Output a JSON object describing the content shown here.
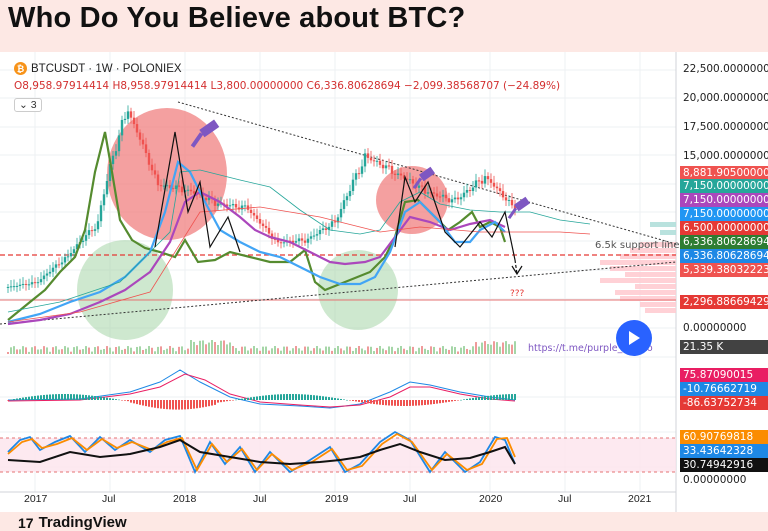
{
  "headline": "Who Do You Believe about BTC?",
  "symbol": {
    "icon": "bitcoin-icon",
    "text": "BTCUSDT · 1W · POLONIEX",
    "ohlc": "O8,958.97914414 H8,958.97914414 L3,800.00000000 C6,336.80628694 −2,099.38568707 (−24.89%)",
    "indicator_toggle": "3"
  },
  "annotations": {
    "support_line": "6.5k support line",
    "question": "???",
    "link": "https://t.me/purple_crypto"
  },
  "brand": "TradingView",
  "price_axis_ticks": [
    "22,500.00000000",
    "20,000.00000000",
    "17,500.00000000",
    "15,000.00000000",
    "0.00000000"
  ],
  "price_labels": [
    {
      "text": "8,881.90500000",
      "color": "#ef5350"
    },
    {
      "text": "7,150.00000000",
      "color": "#26a69a"
    },
    {
      "text": "7,150.00000000",
      "color": "#ab47bc"
    },
    {
      "text": "7,150.00000000",
      "color": "#2196f3"
    },
    {
      "text": "6,500.00000000",
      "color": "#e53935"
    },
    {
      "text": "6,336.80628694",
      "color": "#2e7d32"
    },
    {
      "text": "6,336.80628694",
      "color": "#1e88e5"
    },
    {
      "text": "5,339.38032223",
      "color": "#ef5350"
    },
    {
      "text": "2,296.88669429",
      "color": "#e53935"
    }
  ],
  "volume_label": {
    "text": "21.35 K",
    "color": "#424242"
  },
  "macd_labels": [
    {
      "text": "75.87090015",
      "color": "#e91e63"
    },
    {
      "text": "-10.76662719",
      "color": "#1e88e5"
    },
    {
      "text": "-86.63752734",
      "color": "#e53935"
    }
  ],
  "rsi_labels": [
    {
      "text": "60.90769818",
      "color": "#fb8c00"
    },
    {
      "text": "33.43642328",
      "color": "#1e88e5"
    },
    {
      "text": "30.74942916",
      "color": "#111111"
    }
  ],
  "bottom_tick": "0.00000000",
  "x_ticks": [
    "2017",
    "Jul",
    "2018",
    "Jul",
    "2019",
    "Jul",
    "2020",
    "Jul",
    "2021"
  ],
  "chart_data": {
    "type": "line",
    "x": [
      "2017-01",
      "2017-04",
      "2017-07",
      "2017-10",
      "2017-12",
      "2018-02",
      "2018-04",
      "2018-06",
      "2018-09",
      "2018-12",
      "2019-02",
      "2019-04",
      "2019-06",
      "2019-08",
      "2019-10",
      "2019-12",
      "2020-02",
      "2020-03"
    ],
    "series": [
      {
        "values": [
          900,
          1100,
          2500,
          5000,
          19500,
          9000,
          8500,
          7000,
          6500,
          3500,
          3700,
          5200,
          12500,
          10500,
          8300,
          7200,
          10000,
          6336
        ]
      }
    ],
    "ylim": [
      0,
      22500
    ]
  }
}
